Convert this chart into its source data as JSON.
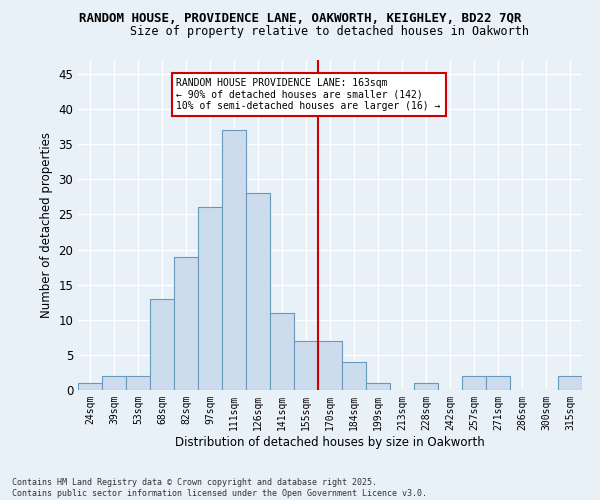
{
  "title1": "RANDOM HOUSE, PROVIDENCE LANE, OAKWORTH, KEIGHLEY, BD22 7QR",
  "title2": "Size of property relative to detached houses in Oakworth",
  "xlabel": "Distribution of detached houses by size in Oakworth",
  "ylabel": "Number of detached properties",
  "categories": [
    "24sqm",
    "39sqm",
    "53sqm",
    "68sqm",
    "82sqm",
    "97sqm",
    "111sqm",
    "126sqm",
    "141sqm",
    "155sqm",
    "170sqm",
    "184sqm",
    "199sqm",
    "213sqm",
    "228sqm",
    "242sqm",
    "257sqm",
    "271sqm",
    "286sqm",
    "300sqm",
    "315sqm"
  ],
  "values": [
    1,
    2,
    2,
    13,
    19,
    26,
    37,
    28,
    11,
    7,
    7,
    4,
    1,
    0,
    1,
    0,
    2,
    2,
    0,
    0,
    2
  ],
  "bar_color": "#ccdcec",
  "bar_edge_color": "#6699bb",
  "background_color": "#e8f0f8",
  "grid_color": "#ffffff",
  "vline_x_index": 9.5,
  "vline_color": "#cc0000",
  "annotation_text": "RANDOM HOUSE PROVIDENCE LANE: 163sqm\n← 90% of detached houses are smaller (142)\n10% of semi-detached houses are larger (16) →",
  "annotation_box_color": "#ffffff",
  "annotation_box_edge_color": "#cc0000",
  "footer": "Contains HM Land Registry data © Crown copyright and database right 2025.\nContains public sector information licensed under the Open Government Licence v3.0.",
  "ylim": [
    0,
    47
  ],
  "yticks": [
    0,
    5,
    10,
    15,
    20,
    25,
    30,
    35,
    40,
    45
  ]
}
